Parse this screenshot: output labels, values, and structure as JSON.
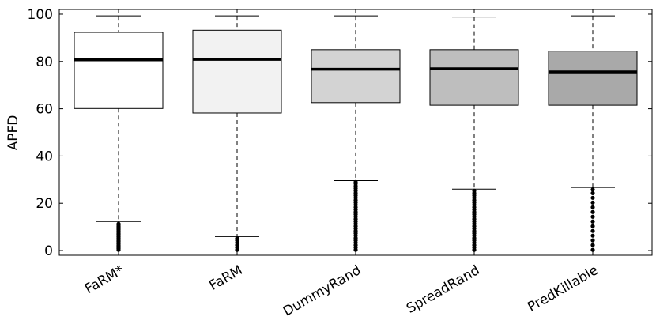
{
  "chart_data": {
    "type": "box",
    "title": "",
    "xlabel": "",
    "ylabel": "APFD",
    "ylim": [
      -2,
      102
    ],
    "yticks": [
      0,
      20,
      40,
      60,
      80,
      100
    ],
    "grid": false,
    "categories": [
      "FaRM*",
      "FaRM",
      "DummyRand",
      "SpreadRand",
      "PredKillable"
    ],
    "series": [
      {
        "category": "FaRM*",
        "fill": "#ffffff",
        "whisker_low": 12.3,
        "q1": 60.1,
        "median": 80.7,
        "q3": 92.3,
        "whisker_high": 99.3,
        "outliers": [
          0.3,
          0.8,
          1.3,
          1.8,
          2.3,
          2.8,
          3.3,
          3.8,
          4.3,
          4.8,
          5.3,
          5.8,
          6.3,
          6.8,
          7.3,
          7.8,
          8.3,
          8.8,
          9.3,
          9.8,
          10.3,
          10.8,
          11.3
        ]
      },
      {
        "category": "FaRM",
        "fill": "#f2f2f2",
        "whisker_low": 5.9,
        "q1": 58.2,
        "median": 80.9,
        "q3": 93.2,
        "whisker_high": 99.3,
        "outliers": [
          0.3,
          1.3,
          2.3,
          3.3,
          4.3,
          5.1
        ]
      },
      {
        "category": "DummyRand",
        "fill": "#d3d3d3",
        "whisker_low": 29.6,
        "q1": 62.6,
        "median": 76.7,
        "q3": 85.0,
        "whisker_high": 99.3,
        "outliers": [
          0.3,
          1.3,
          2.3,
          3.3,
          4.3,
          5.3,
          6.3,
          7.3,
          8.3,
          9.3,
          10.3,
          11.3,
          12.3,
          13.3,
          14.3,
          15.3,
          16.3,
          17.3,
          18.3,
          19.3,
          20.3,
          21.3,
          22.3,
          23.3,
          24.3,
          25.3,
          26.3,
          27.3,
          28.3,
          29.0
        ]
      },
      {
        "category": "SpreadRand",
        "fill": "#bebebe",
        "whisker_low": 26.0,
        "q1": 61.5,
        "median": 76.9,
        "q3": 85.0,
        "whisker_high": 98.8,
        "outliers": [
          0.3,
          1.3,
          2.3,
          3.3,
          4.3,
          5.3,
          6.3,
          7.3,
          8.3,
          9.3,
          10.3,
          11.3,
          12.3,
          13.3,
          14.3,
          15.3,
          16.3,
          17.3,
          18.3,
          19.3,
          20.3,
          21.3,
          22.3,
          23.3,
          24.3,
          25.3
        ]
      },
      {
        "category": "PredKillable",
        "fill": "#a9a9a9",
        "whisker_low": 26.7,
        "q1": 61.5,
        "median": 75.6,
        "q3": 84.4,
        "whisker_high": 99.3,
        "outliers": [
          0.3,
          2.3,
          4.3,
          6.3,
          8.3,
          10.3,
          12.3,
          14.3,
          16.3,
          18.3,
          20.3,
          22.3,
          24.3,
          25.8
        ]
      }
    ]
  }
}
